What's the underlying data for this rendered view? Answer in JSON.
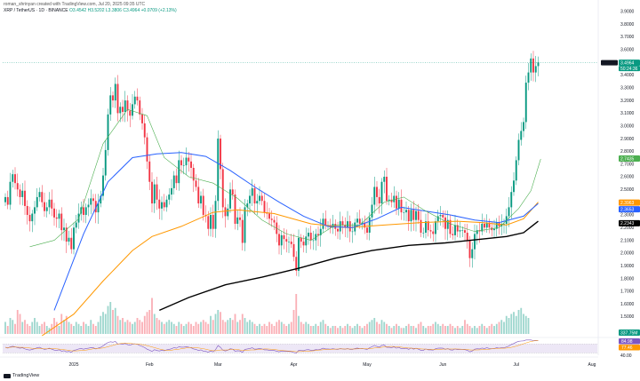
{
  "header": {
    "author_line": "roman_shrinyan created with TradingView.com, Jul 20, 2025 09:35 UTC",
    "symbol_line": "XRP / TetherUS · 1D · BINANCE",
    "ohlc": "O3.4542 H3.5202 L3.3806 C3.4964 +0.0709 (+2.13%)"
  },
  "watermark": {
    "brand": "TradingView"
  },
  "colors": {
    "up": "#089981",
    "down": "#f23645",
    "ma_black": "#000000",
    "ma_orange": "#ff9800",
    "ma_blue": "#2962ff",
    "ma_green": "#4caf50",
    "rsi": "#7e57c2",
    "rsi_band": "#ede7f6"
  },
  "chart_data": {
    "type": "candlestick",
    "y_axis": {
      "range": [
        1.35,
        3.92
      ],
      "ticks": [
        "3.9000",
        "3.8000",
        "3.7000",
        "3.6000",
        "3.5000",
        "3.4000",
        "3.3000",
        "3.2000",
        "3.1000",
        "3.0000",
        "2.9000",
        "2.8000",
        "2.7000",
        "2.6000",
        "2.5000",
        "2.4000",
        "2.3000",
        "2.2000",
        "2.1000",
        "2.0000",
        "1.9000",
        "1.8000",
        "1.7000",
        "1.6000",
        "1.5000"
      ]
    },
    "x_axis": {
      "ticks": [
        {
          "label": "2025",
          "index": 28
        },
        {
          "label": "Feb",
          "index": 59
        },
        {
          "label": "Mar",
          "index": 87
        },
        {
          "label": "Apr",
          "index": 118
        },
        {
          "label": "May",
          "index": 148
        },
        {
          "label": "Jun",
          "index": 179
        },
        {
          "label": "Jul",
          "index": 209
        },
        {
          "label": "Aug",
          "index": 240
        }
      ]
    },
    "candles": {
      "start_index": 0,
      "closes": [
        2.44,
        2.38,
        2.56,
        2.62,
        2.55,
        2.5,
        2.44,
        2.49,
        2.37,
        2.3,
        2.25,
        2.31,
        2.36,
        2.44,
        2.48,
        2.4,
        2.33,
        2.36,
        2.42,
        2.35,
        2.28,
        2.27,
        2.31,
        2.18,
        2.2,
        2.09,
        2.12,
        2.03,
        2.2,
        2.24,
        2.31,
        2.36,
        2.3,
        2.36,
        2.38,
        2.43,
        2.41,
        2.32,
        2.39,
        2.45,
        2.61,
        2.81,
        3.09,
        3.24,
        3.2,
        3.33,
        3.1,
        3.15,
        3.11,
        3.2,
        3.12,
        3.08,
        3.17,
        3.23,
        3.2,
        3.09,
        3.02,
        2.91,
        2.72,
        2.56,
        2.39,
        2.54,
        2.42,
        2.35,
        2.4,
        2.36,
        2.42,
        2.46,
        2.51,
        2.61,
        2.55,
        2.73,
        2.69,
        2.69,
        2.75,
        2.72,
        2.67,
        2.57,
        2.52,
        2.39,
        2.45,
        2.3,
        2.29,
        2.19,
        2.3,
        2.19,
        2.41,
        2.9,
        2.66,
        2.36,
        2.29,
        2.35,
        2.5,
        2.46,
        2.23,
        2.28,
        2.26,
        2.08,
        2.36,
        2.39,
        2.45,
        2.51,
        2.39,
        2.41,
        2.45,
        2.41,
        2.32,
        2.31,
        2.27,
        2.26,
        2.24,
        2.15,
        2.06,
        2.14,
        2.11,
        2.09,
        2.09,
        2.07,
        1.97,
        1.86,
        2.12,
        2.09,
        2.06,
        2.13,
        2.16,
        2.1,
        2.1,
        2.15,
        2.14,
        2.19,
        2.27,
        2.22,
        2.22,
        2.2,
        2.23,
        2.19,
        2.17,
        2.25,
        2.22,
        2.2,
        2.25,
        2.17,
        2.17,
        2.24,
        2.27,
        2.23,
        2.24,
        2.2,
        2.16,
        2.28,
        2.38,
        2.52,
        2.44,
        2.39,
        2.56,
        2.6,
        2.41,
        2.42,
        2.4,
        2.45,
        2.35,
        2.42,
        2.32,
        2.32,
        2.34,
        2.25,
        2.34,
        2.26,
        2.33,
        2.26,
        2.16,
        2.16,
        2.25,
        2.18,
        2.17,
        2.15,
        2.25,
        2.29,
        2.3,
        2.28,
        2.19,
        2.26,
        2.15,
        2.14,
        2.22,
        2.17,
        2.18,
        2.18,
        2.16,
        2.1,
        1.96,
        2.03,
        2.15,
        2.18,
        2.17,
        2.23,
        2.2,
        2.24,
        2.2,
        2.18,
        2.19,
        2.24,
        2.21,
        2.23,
        2.23,
        2.29,
        2.36,
        2.48,
        2.57,
        2.73,
        2.89,
        2.96,
        3.03,
        3.34,
        3.42,
        3.53,
        3.42,
        3.47,
        3.5
      ]
    },
    "moving_averages": [
      {
        "color": "#000000",
        "points": [
          [
            63,
            1.55
          ],
          [
            75,
            1.65
          ],
          [
            90,
            1.75
          ],
          [
            105,
            1.81
          ],
          [
            120,
            1.88
          ],
          [
            135,
            1.96
          ],
          [
            150,
            2.02
          ],
          [
            165,
            2.06
          ],
          [
            180,
            2.08
          ],
          [
            195,
            2.11
          ],
          [
            205,
            2.13
          ],
          [
            212,
            2.16
          ],
          [
            218,
            2.25
          ]
        ]
      },
      {
        "color": "#ff9800",
        "points": [
          [
            15,
            1.35
          ],
          [
            28,
            1.52
          ],
          [
            40,
            1.78
          ],
          [
            52,
            2.02
          ],
          [
            60,
            2.13
          ],
          [
            72,
            2.21
          ],
          [
            85,
            2.32
          ],
          [
            95,
            2.34
          ],
          [
            110,
            2.31
          ],
          [
            125,
            2.23
          ],
          [
            140,
            2.2
          ],
          [
            155,
            2.22
          ],
          [
            170,
            2.24
          ],
          [
            185,
            2.25
          ],
          [
            195,
            2.24
          ],
          [
            205,
            2.22
          ],
          [
            212,
            2.27
          ],
          [
            218,
            2.4
          ]
        ]
      },
      {
        "color": "#2962ff",
        "points": [
          [
            20,
            1.55
          ],
          [
            32,
            2.15
          ],
          [
            42,
            2.56
          ],
          [
            52,
            2.75
          ],
          [
            62,
            2.78
          ],
          [
            72,
            2.79
          ],
          [
            82,
            2.76
          ],
          [
            92,
            2.65
          ],
          [
            102,
            2.52
          ],
          [
            112,
            2.4
          ],
          [
            122,
            2.29
          ],
          [
            132,
            2.21
          ],
          [
            142,
            2.2
          ],
          [
            152,
            2.27
          ],
          [
            162,
            2.36
          ],
          [
            172,
            2.33
          ],
          [
            182,
            2.3
          ],
          [
            192,
            2.26
          ],
          [
            202,
            2.24
          ],
          [
            212,
            2.29
          ],
          [
            218,
            2.39
          ]
        ]
      },
      {
        "color": "#4caf50",
        "points": [
          [
            10,
            2.05
          ],
          [
            20,
            2.1
          ],
          [
            30,
            2.27
          ],
          [
            40,
            2.86
          ],
          [
            50,
            3.13
          ],
          [
            58,
            3.08
          ],
          [
            65,
            2.75
          ],
          [
            75,
            2.6
          ],
          [
            85,
            2.55
          ],
          [
            95,
            2.43
          ],
          [
            105,
            2.26
          ],
          [
            115,
            2.15
          ],
          [
            125,
            2.1
          ],
          [
            135,
            2.22
          ],
          [
            145,
            2.22
          ],
          [
            155,
            2.4
          ],
          [
            163,
            2.44
          ],
          [
            172,
            2.33
          ],
          [
            182,
            2.23
          ],
          [
            192,
            2.17
          ],
          [
            202,
            2.2
          ],
          [
            210,
            2.35
          ],
          [
            215,
            2.49
          ],
          [
            219,
            2.74
          ]
        ]
      }
    ],
    "volume_bars": [
      0.3,
      0.2,
      0.4,
      0.35,
      0.25,
      0.6,
      0.5,
      0.3,
      0.35,
      0.25,
      0.2,
      0.3,
      0.4,
      0.3,
      0.2,
      0.25,
      0.3,
      0.2,
      0.15,
      0.25,
      0.4,
      0.3,
      0.2,
      0.5,
      0.35,
      0.45,
      0.3,
      0.25,
      0.2,
      0.3,
      0.25,
      0.2,
      0.3,
      0.25,
      0.2,
      0.35,
      0.25,
      0.2,
      0.3,
      0.45,
      0.55,
      0.5,
      0.7,
      0.8,
      0.6,
      0.65,
      0.45,
      0.35,
      0.4,
      0.3,
      0.35,
      0.3,
      0.25,
      0.3,
      0.4,
      0.35,
      0.3,
      0.45,
      0.55,
      0.6,
      0.9,
      0.5,
      0.4,
      0.35,
      0.3,
      0.25,
      0.3,
      0.35,
      0.3,
      0.25,
      0.2,
      0.3,
      0.25,
      0.2,
      0.25,
      0.3,
      0.25,
      0.2,
      0.3,
      0.25,
      0.3,
      0.35,
      0.3,
      0.25,
      0.45,
      0.35,
      0.5,
      0.6,
      0.55,
      0.35,
      0.3,
      0.35,
      0.4,
      0.35,
      0.5,
      0.3,
      0.35,
      0.5,
      0.4,
      0.3,
      0.35,
      0.3,
      0.25,
      0.2,
      0.25,
      0.2,
      0.25,
      0.2,
      0.3,
      0.25,
      0.2,
      0.3,
      0.35,
      0.3,
      0.25,
      0.2,
      0.25,
      0.3,
      0.6,
      1.0,
      0.45,
      0.3,
      0.25,
      0.3,
      0.25,
      0.2,
      0.2,
      0.25,
      0.2,
      0.3,
      0.35,
      0.25,
      0.2,
      0.15,
      0.2,
      0.2,
      0.15,
      0.2,
      0.15,
      0.2,
      0.25,
      0.2,
      0.15,
      0.2,
      0.25,
      0.2,
      0.15,
      0.2,
      0.25,
      0.3,
      0.35,
      0.4,
      0.3,
      0.25,
      0.35,
      0.3,
      0.25,
      0.2,
      0.15,
      0.2,
      0.25,
      0.2,
      0.15,
      0.15,
      0.2,
      0.25,
      0.2,
      0.2,
      0.15,
      0.25,
      0.3,
      0.2,
      0.15,
      0.2,
      0.2,
      0.25,
      0.3,
      0.25,
      0.2,
      0.25,
      0.2,
      0.2,
      0.25,
      0.2,
      0.15,
      0.2,
      0.15,
      0.2,
      0.35,
      0.25,
      0.2,
      0.15,
      0.2,
      0.15,
      0.2,
      0.25,
      0.2,
      0.15,
      0.2,
      0.25,
      0.2,
      0.25,
      0.3,
      0.35,
      0.3,
      0.45,
      0.4,
      0.5,
      0.55,
      0.45,
      0.6,
      0.65,
      0.5,
      0.45,
      0.4
    ],
    "price_labels": [
      {
        "text": "3.4964",
        "value": 3.4964,
        "color": "#089981",
        "count": "50:24:36"
      },
      {
        "text": "2.7435",
        "value": 2.7435,
        "color": "#4caf50"
      },
      {
        "text": "2.3963",
        "value": 2.3963,
        "color": "#ff9800"
      },
      {
        "text": "2.3653",
        "value": 2.3653,
        "color": "#2962ff"
      },
      {
        "text": "2.2343",
        "value": 2.2343,
        "color": "#000000"
      }
    ],
    "volume_label": {
      "text": "337.75M",
      "color": "#089981"
    },
    "rsi": {
      "upper": 70,
      "lower": 30,
      "values": [
        55,
        52,
        58,
        60,
        57,
        54,
        51,
        53,
        48,
        45,
        43,
        46,
        49,
        53,
        55,
        50,
        46,
        48,
        51,
        47,
        43,
        42,
        44,
        38,
        40,
        35,
        37,
        33,
        42,
        44,
        48,
        50,
        47,
        50,
        51,
        54,
        53,
        48,
        52,
        55,
        62,
        70,
        77,
        80,
        78,
        81,
        70,
        71,
        69,
        72,
        67,
        65,
        69,
        71,
        69,
        63,
        59,
        54,
        47,
        42,
        37,
        45,
        41,
        39,
        42,
        40,
        44,
        46,
        49,
        54,
        51,
        58,
        56,
        56,
        58,
        56,
        53,
        48,
        46,
        41,
        44,
        38,
        37,
        34,
        39,
        35,
        45,
        63,
        55,
        42,
        39,
        42,
        49,
        47,
        38,
        40,
        39,
        33,
        46,
        48,
        50,
        53,
        47,
        48,
        50,
        48,
        44,
        44,
        42,
        42,
        41,
        38,
        35,
        39,
        37,
        37,
        37,
        36,
        32,
        29,
        42,
        41,
        40,
        44,
        45,
        42,
        42,
        45,
        44,
        47,
        51,
        48,
        48,
        47,
        49,
        47,
        46,
        50,
        48,
        47,
        50,
        46,
        46,
        50,
        52,
        49,
        50,
        48,
        46,
        53,
        58,
        64,
        59,
        56,
        64,
        65,
        55,
        55,
        54,
        57,
        51,
        55,
        49,
        49,
        51,
        46,
        52,
        47,
        51,
        47,
        42,
        42,
        48,
        44,
        44,
        43,
        49,
        51,
        52,
        51,
        46,
        50,
        44,
        43,
        48,
        45,
        46,
        46,
        45,
        42,
        35,
        39,
        47,
        49,
        48,
        52,
        50,
        53,
        50,
        49,
        50,
        53,
        51,
        53,
        53,
        57,
        61,
        68,
        72,
        78,
        82,
        83,
        84,
        88,
        88,
        88,
        85,
        86,
        86
      ],
      "labels": [
        {
          "text": "84.98",
          "color": "#7e57c2"
        },
        {
          "text": "77.46",
          "color": "#ff9800"
        }
      ],
      "ticks": [
        "80.00",
        "40.00"
      ]
    }
  }
}
